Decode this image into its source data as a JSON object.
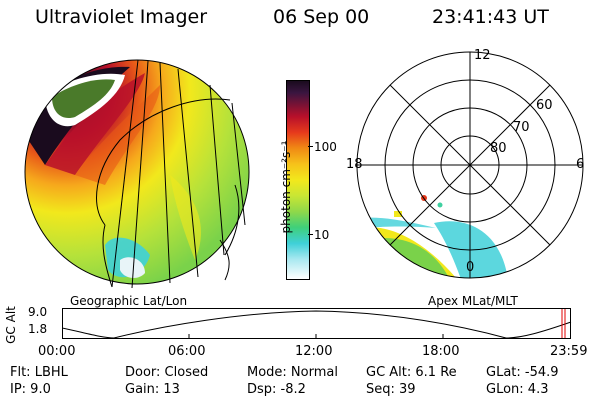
{
  "header": {
    "instrument": "Ultraviolet Imager",
    "date": "06 Sep 00",
    "time": "23:41:43 UT"
  },
  "colorbar": {
    "unit": "photon cm⁻²s⁻¹",
    "ticks": [
      "100",
      "10"
    ]
  },
  "left_panel": {
    "caption": "Geographic Lat/Lon"
  },
  "right_panel": {
    "caption": "Apex MLat/MLT",
    "mlt_labels": {
      "top": "12",
      "left": "18",
      "right": "6",
      "bottom": "0"
    },
    "lat_labels": [
      "60",
      "70",
      "80"
    ]
  },
  "altitude_plot": {
    "ylabel": "GC Alt",
    "yticks": [
      "9.0",
      "1.8"
    ],
    "xticks": [
      "00:00",
      "06:00",
      "12:00",
      "18:00",
      "23:59"
    ]
  },
  "footer": {
    "filter": "Flt: LBHL",
    "ip": "IP:  9.0",
    "door": "Door: Closed",
    "gain": "Gain: 13",
    "mode": "Mode: Normal",
    "dsp": "Dsp:   -8.2",
    "gc_alt": "GC Alt: 6.1 Re",
    "seq": "Seq: 39",
    "glat": "GLat:  -54.9",
    "glon": "GLon:   4.3"
  },
  "colors": {
    "background": "#ffffff",
    "high": "#1a0b1e",
    "red": "#b8102a",
    "orange": "#f08a14",
    "yellow": "#f2e81c",
    "green": "#7ad24a",
    "cyan": "#3fd0d8",
    "saturated": "#4a7a2a"
  }
}
